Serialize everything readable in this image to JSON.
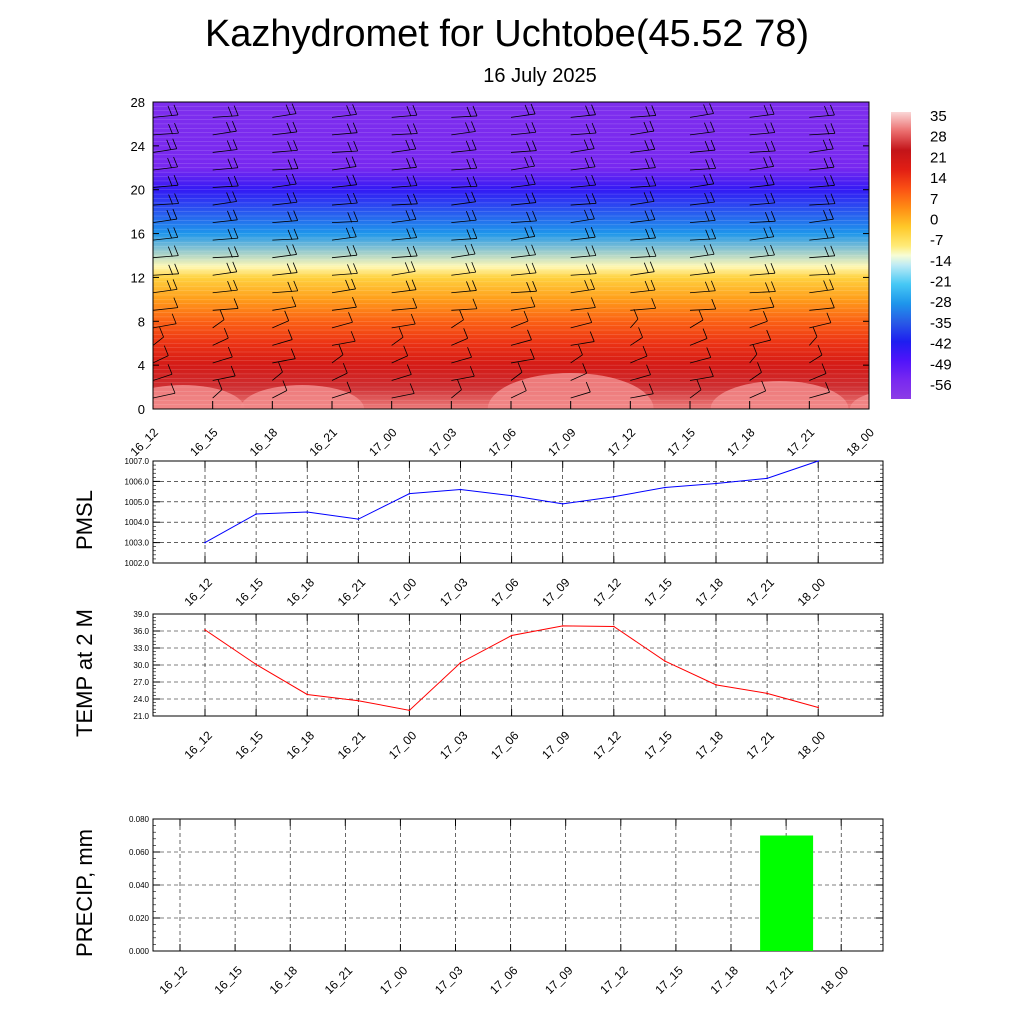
{
  "header": {
    "title": "Kazhydromet for Uchtobe(45.52 78)",
    "subtitle": "16 July 2025"
  },
  "chart_data": [
    {
      "type": "heatmap",
      "name": "vertical-temperature-profile",
      "x_labels": [
        "16_12",
        "16_15",
        "16_18",
        "16_21",
        "17_00",
        "17_03",
        "17_06",
        "17_09",
        "17_12",
        "17_15",
        "17_18",
        "17_21",
        "18_00"
      ],
      "y_ticks": [
        0,
        4,
        8,
        12,
        16,
        20,
        24,
        28
      ],
      "ylim": [
        0,
        28
      ],
      "colorbar_ticks": [
        "35",
        "28",
        "21",
        "14",
        "7",
        "0",
        "-7",
        "-14",
        "-21",
        "-28",
        "-35",
        "-42",
        "-49",
        "-56"
      ],
      "colorbar_range": [
        -63,
        42
      ],
      "temperature_profile": {
        "heights": [
          0,
          2,
          4,
          6,
          8,
          10,
          12,
          13,
          16,
          20,
          22,
          28
        ],
        "values": [
          36,
          30,
          24,
          18,
          12,
          5,
          -2,
          -9,
          -28,
          -45,
          -56,
          -58
        ]
      },
      "wind_barbs": true
    },
    {
      "type": "line",
      "name": "pmsl",
      "ylabel": "PMSL",
      "x": [
        "16_12",
        "16_15",
        "16_18",
        "16_21",
        "17_00",
        "17_03",
        "17_06",
        "17_09",
        "17_12",
        "17_15",
        "17_18",
        "17_21",
        "18_00"
      ],
      "y_ticks": [
        "1002.0",
        "1003.0",
        "1004.0",
        "1005.0",
        "1006.0",
        "1007.0"
      ],
      "ylim": [
        1002.0,
        1007.0
      ],
      "series": [
        {
          "color": "#0000ff",
          "values": [
            1003.0,
            1004.4,
            1004.5,
            1004.15,
            1005.4,
            1005.6,
            1005.3,
            1004.9,
            1005.25,
            1005.7,
            1005.9,
            1006.15,
            1007.0
          ]
        }
      ],
      "grid": true
    },
    {
      "type": "line",
      "name": "temperature-2m",
      "ylabel": "TEMP at 2 M",
      "x": [
        "16_12",
        "16_15",
        "16_18",
        "16_21",
        "17_00",
        "17_03",
        "17_06",
        "17_09",
        "17_12",
        "17_15",
        "17_18",
        "17_21",
        "18_00"
      ],
      "y_ticks": [
        "21.0",
        "24.0",
        "27.0",
        "30.0",
        "33.0",
        "36.0",
        "39.0"
      ],
      "ylim": [
        21.0,
        39.0
      ],
      "series": [
        {
          "color": "#ff0000",
          "values": [
            36.2,
            30.1,
            24.8,
            23.7,
            22.0,
            30.4,
            35.2,
            36.9,
            36.8,
            30.7,
            26.5,
            25.0,
            22.5
          ]
        }
      ],
      "grid": true
    },
    {
      "type": "bar",
      "name": "precipitation",
      "ylabel": "PRECIP, mm",
      "categories": [
        "16_12",
        "16_15",
        "16_18",
        "16_21",
        "17_00",
        "17_03",
        "17_06",
        "17_09",
        "17_12",
        "17_15",
        "17_18",
        "17_21",
        "18_00"
      ],
      "y_ticks": [
        "0.000",
        "0.020",
        "0.040",
        "0.060",
        "0.080"
      ],
      "ylim": [
        0,
        0.08
      ],
      "series": [
        {
          "color": "#00ff00",
          "values": [
            0,
            0,
            0,
            0,
            0,
            0,
            0,
            0,
            0,
            0,
            0,
            0.07,
            0
          ]
        }
      ],
      "grid": true
    }
  ]
}
